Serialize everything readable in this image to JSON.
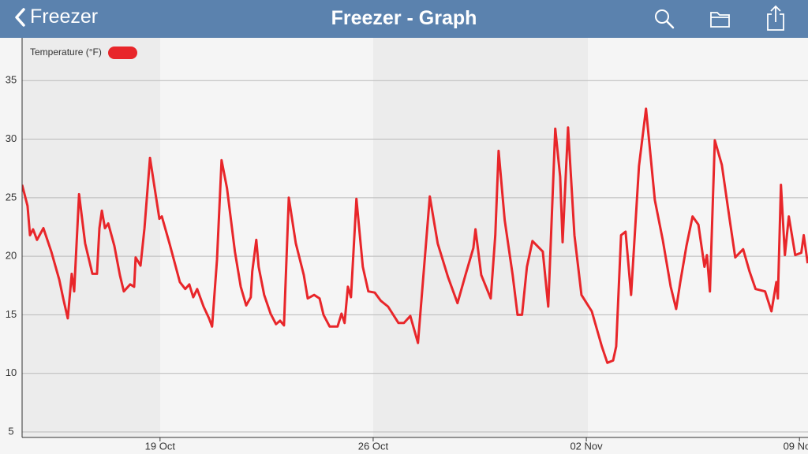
{
  "header": {
    "back": "Freezer",
    "title": "Freezer - Graph"
  },
  "chart_data": {
    "type": "line",
    "xlim": [
      14.47,
      40.28
    ],
    "xticks": [
      {
        "value": 19,
        "label": "19 Oct"
      },
      {
        "value": 26,
        "label": "26 Oct"
      },
      {
        "value": 33,
        "label": "02 Nov"
      },
      {
        "value": 40,
        "label": "09 Nov"
      }
    ],
    "ylim": [
      4.53,
      38.65
    ],
    "yticks": [
      5,
      10,
      15,
      20,
      25,
      30,
      35
    ],
    "grid": true,
    "x": [
      14.47,
      14.65,
      14.73,
      14.83,
      14.96,
      15.17,
      15.43,
      15.69,
      15.82,
      15.97,
      16.1,
      16.18,
      16.34,
      16.54,
      16.78,
      16.93,
      17.01,
      17.09,
      17.19,
      17.3,
      17.5,
      17.68,
      17.81,
      18.02,
      18.15,
      18.2,
      18.36,
      18.49,
      18.67,
      18.98,
      19.06,
      19.31,
      19.65,
      19.83,
      19.96,
      20.09,
      20.22,
      20.43,
      20.61,
      20.71,
      20.87,
      21.02,
      21.2,
      21.46,
      21.65,
      21.83,
      21.98,
      22.03,
      22.16,
      22.24,
      22.42,
      22.63,
      22.81,
      22.94,
      23.07,
      23.23,
      23.46,
      23.72,
      23.85,
      24.06,
      24.24,
      24.37,
      24.57,
      24.83,
      24.96,
      25.06,
      25.17,
      25.27,
      25.45,
      25.66,
      25.84,
      26.05,
      26.25,
      26.49,
      26.83,
      27.01,
      27.22,
      27.47,
      27.86,
      28.12,
      28.46,
      28.77,
      29.03,
      29.29,
      29.36,
      29.55,
      29.86,
      30.01,
      30.12,
      30.32,
      30.58,
      30.74,
      30.89,
      31.05,
      31.23,
      31.57,
      31.75,
      31.98,
      32.14,
      32.22,
      32.4,
      32.61,
      32.84,
      33.18,
      33.51,
      33.69,
      33.88,
      33.98,
      34.14,
      34.29,
      34.47,
      34.73,
      34.96,
      35.25,
      35.51,
      35.77,
      35.95,
      36.08,
      36.29,
      36.49,
      36.68,
      36.88,
      36.96,
      37.06,
      37.22,
      37.45,
      37.71,
      37.89,
      38.15,
      38.36,
      38.56,
      38.87,
      39.08,
      39.24,
      39.29,
      39.39,
      39.52,
      39.65,
      39.86,
      40.06,
      40.14,
      40.27
    ],
    "series": [
      {
        "name": "Temperature (°F)",
        "color": "#e8262a",
        "values": [
          26.1,
          24.3,
          21.8,
          22.3,
          21.4,
          22.4,
          20.4,
          18.0,
          16.4,
          14.7,
          18.5,
          17.0,
          25.3,
          21.1,
          18.5,
          18.5,
          22.4,
          23.9,
          22.4,
          22.8,
          20.9,
          18.4,
          17.0,
          17.6,
          17.4,
          19.9,
          19.2,
          22.4,
          28.4,
          23.2,
          23.4,
          21.1,
          17.8,
          17.2,
          17.6,
          16.5,
          17.2,
          15.7,
          14.7,
          14.0,
          19.7,
          28.2,
          25.8,
          20.4,
          17.4,
          15.8,
          16.5,
          18.7,
          21.4,
          19.1,
          16.7,
          15.1,
          14.2,
          14.5,
          14.1,
          25.0,
          21.1,
          18.4,
          16.4,
          16.7,
          16.4,
          15.0,
          14.0,
          14.0,
          15.1,
          14.3,
          17.4,
          16.5,
          24.9,
          19.1,
          17.0,
          16.9,
          16.2,
          15.7,
          14.3,
          14.3,
          14.9,
          12.6,
          25.1,
          21.1,
          18.2,
          16.0,
          18.4,
          20.7,
          22.3,
          18.4,
          16.4,
          21.8,
          29.0,
          23.1,
          18.4,
          15.0,
          15.0,
          19.1,
          21.3,
          20.4,
          15.7,
          30.9,
          26.8,
          21.2,
          31.0,
          21.8,
          16.7,
          15.3,
          12.3,
          10.9,
          11.1,
          12.3,
          21.8,
          22.1,
          16.7,
          27.7,
          32.6,
          24.8,
          21.4,
          17.4,
          15.5,
          17.7,
          20.9,
          23.4,
          22.7,
          19.1,
          20.1,
          17.0,
          29.9,
          27.8,
          23.1,
          19.9,
          20.6,
          18.7,
          17.2,
          17.0,
          15.3,
          17.8,
          16.4,
          26.1,
          20.1,
          23.4,
          20.1,
          20.3,
          21.8,
          19.4
        ]
      }
    ]
  }
}
